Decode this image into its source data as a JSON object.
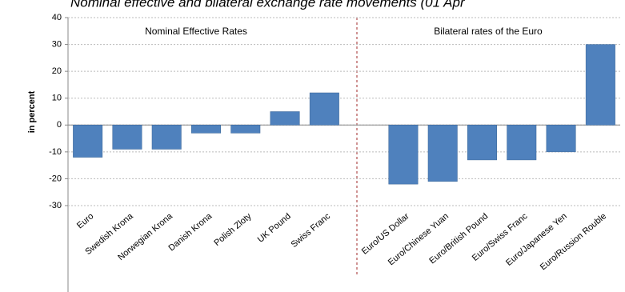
{
  "chart_data": {
    "type": "bar",
    "title": "Nominal effective and bilateral exchange rate movements (01 Apr",
    "y_label": "in percent",
    "annotations": [
      "Nominal Effective Rates",
      "Bilateral rates of the Euro"
    ],
    "categories": [
      "Euro",
      "Swedish Krona",
      "Norwegian Krona",
      "Danish Krona",
      "Polish Zloty",
      "UK Pound",
      "Swiss Franc",
      null,
      "Euro/US Dollar",
      "Euro/Chinese Yuan",
      "Euro/British Pound",
      "Euro/Swiss Franc",
      "Euro/Japanese Yen",
      "Euro/Russion Rouble"
    ],
    "values": [
      -12,
      -9,
      -9,
      -3,
      -3,
      5,
      12,
      null,
      -22,
      -21,
      -13,
      -13,
      -10,
      30
    ],
    "color": "#4f81bd",
    "ylim": [
      -30,
      40
    ],
    "yticks": [
      -30,
      -20,
      -10,
      0,
      10,
      20,
      30,
      40
    ],
    "grid": true
  }
}
